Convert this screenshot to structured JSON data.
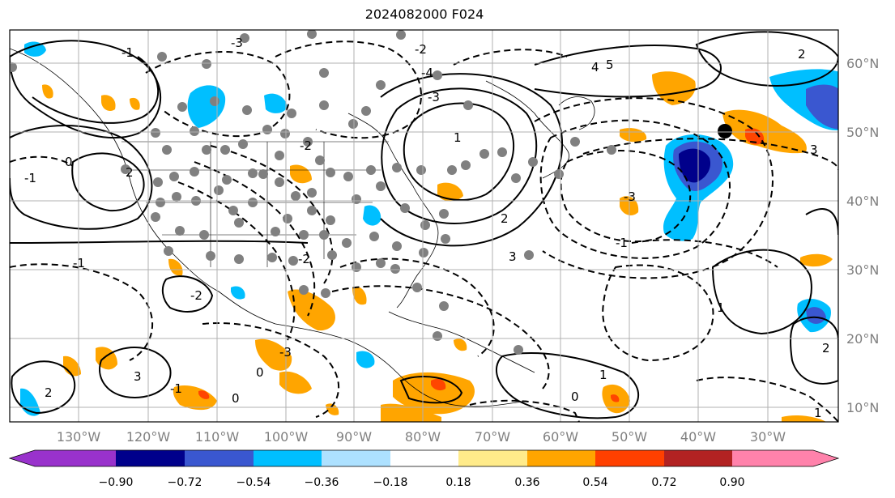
{
  "title": "2024082000 F024",
  "map": {
    "lon_labels": [
      "130°W",
      "120°W",
      "110°W",
      "100°W",
      "90°W",
      "80°W",
      "70°W",
      "60°W",
      "50°W",
      "40°W",
      "30°W"
    ],
    "lat_labels": [
      "60°N",
      "50°N",
      "40°N",
      "30°N",
      "20°N",
      "10°N"
    ],
    "contour_labels": [
      "-3",
      "-1",
      "-2",
      "-4",
      "-3",
      "-2",
      "-1",
      "1",
      "2",
      "3",
      "4",
      "5",
      "1",
      "2",
      "3",
      "0",
      "-1",
      "-2",
      "-3",
      "0",
      "1",
      "2",
      "1",
      "0",
      "-1",
      "-3",
      "2",
      "-2",
      "3",
      "-1",
      "2",
      "0"
    ],
    "shading_colors": {
      "neg_strong": "#00008b",
      "neg_mid": "#3a57d0",
      "neg_light": "#00bfff",
      "pos_light": "#ffa500",
      "pos_mid": "#ff4500",
      "pos_strong": "#b22222"
    },
    "land_color": "#ffffff",
    "grid_color": "#b0b0b0"
  },
  "colorbar": {
    "colors": [
      "#9932cc",
      "#00008b",
      "#3a57d0",
      "#00bfff",
      "#ade1ff",
      "#ffffff",
      "#ffeb8a",
      "#ffa500",
      "#ff4000",
      "#b22222",
      "#ff82ab"
    ],
    "ticks": [
      "−0.90",
      "−0.72",
      "−0.54",
      "−0.36",
      "−0.18",
      "0.18",
      "0.36",
      "0.54",
      "0.72",
      "0.90"
    ]
  }
}
